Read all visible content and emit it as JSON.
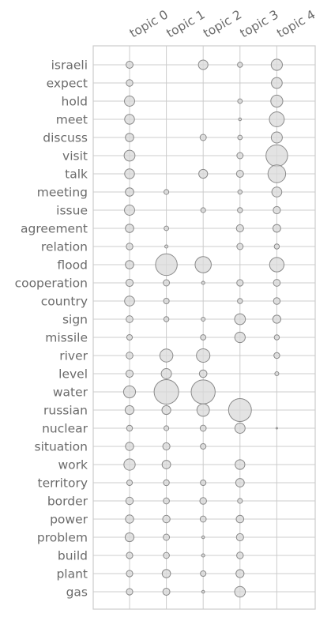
{
  "chart_data": {
    "type": "scatter",
    "subtype": "bubble-matrix",
    "title": "",
    "xlabel": "",
    "ylabel": "",
    "grid": true,
    "topics": [
      "topic 0",
      "topic 1",
      "topic 2",
      "topic 3",
      "topic 4"
    ],
    "words": [
      "israeli",
      "expect",
      "hold",
      "meet",
      "discuss",
      "visit",
      "talk",
      "meeting",
      "issue",
      "agreement",
      "relation",
      "flood",
      "cooperation",
      "country",
      "sign",
      "missile",
      "river",
      "level",
      "water",
      "russian",
      "nuclear",
      "situation",
      "work",
      "territory",
      "border",
      "power",
      "problem",
      "build",
      "plant",
      "gas"
    ],
    "weights": [
      [
        0.019,
        0.0,
        0.035,
        0.01,
        0.048
      ],
      [
        0.017,
        0.0,
        0.0,
        0.0,
        0.045
      ],
      [
        0.04,
        0.0,
        0.0,
        0.008,
        0.055
      ],
      [
        0.037,
        0.0,
        0.0,
        0.003,
        0.085
      ],
      [
        0.027,
        0.0,
        0.015,
        0.008,
        0.047
      ],
      [
        0.045,
        0.0,
        0.0,
        0.015,
        0.18
      ],
      [
        0.037,
        0.0,
        0.03,
        0.019,
        0.12
      ],
      [
        0.027,
        0.009,
        0.0,
        0.007,
        0.038
      ],
      [
        0.04,
        0.0,
        0.009,
        0.01,
        0.02
      ],
      [
        0.027,
        0.008,
        0.0,
        0.02,
        0.023
      ],
      [
        0.017,
        0.004,
        0.0,
        0.015,
        0.01
      ],
      [
        0.027,
        0.18,
        0.1,
        0.0,
        0.08
      ],
      [
        0.02,
        0.015,
        0.004,
        0.016,
        0.018
      ],
      [
        0.038,
        0.012,
        0.0,
        0.01,
        0.017
      ],
      [
        0.018,
        0.01,
        0.006,
        0.045,
        0.025
      ],
      [
        0.012,
        0.0,
        0.011,
        0.042,
        0.01
      ],
      [
        0.018,
        0.065,
        0.07,
        0.0,
        0.013
      ],
      [
        0.02,
        0.04,
        0.022,
        0.0,
        0.006
      ],
      [
        0.055,
        0.23,
        0.22,
        0.0,
        0.0
      ],
      [
        0.03,
        0.03,
        0.06,
        0.2,
        0.0
      ],
      [
        0.013,
        0.009,
        0.014,
        0.04,
        0.001
      ],
      [
        0.026,
        0.02,
        0.012,
        0.0,
        0.0
      ],
      [
        0.049,
        0.028,
        0.0,
        0.036,
        0.0
      ],
      [
        0.012,
        0.013,
        0.012,
        0.028,
        0.0
      ],
      [
        0.021,
        0.014,
        0.017,
        0.009,
        0.0
      ],
      [
        0.026,
        0.021,
        0.014,
        0.022,
        0.0
      ],
      [
        0.03,
        0.015,
        0.003,
        0.02,
        0.0
      ],
      [
        0.016,
        0.014,
        0.004,
        0.017,
        0.0
      ],
      [
        0.016,
        0.027,
        0.012,
        0.025,
        0.0
      ],
      [
        0.016,
        0.019,
        0.003,
        0.044,
        0.0
      ]
    ],
    "colors": {
      "bubble_fill": "#d9d9d9",
      "bubble_stroke": "#8a8a8a",
      "grid": "#cccccc",
      "frame": "#cccccc",
      "label": "#6b6b6b"
    }
  }
}
